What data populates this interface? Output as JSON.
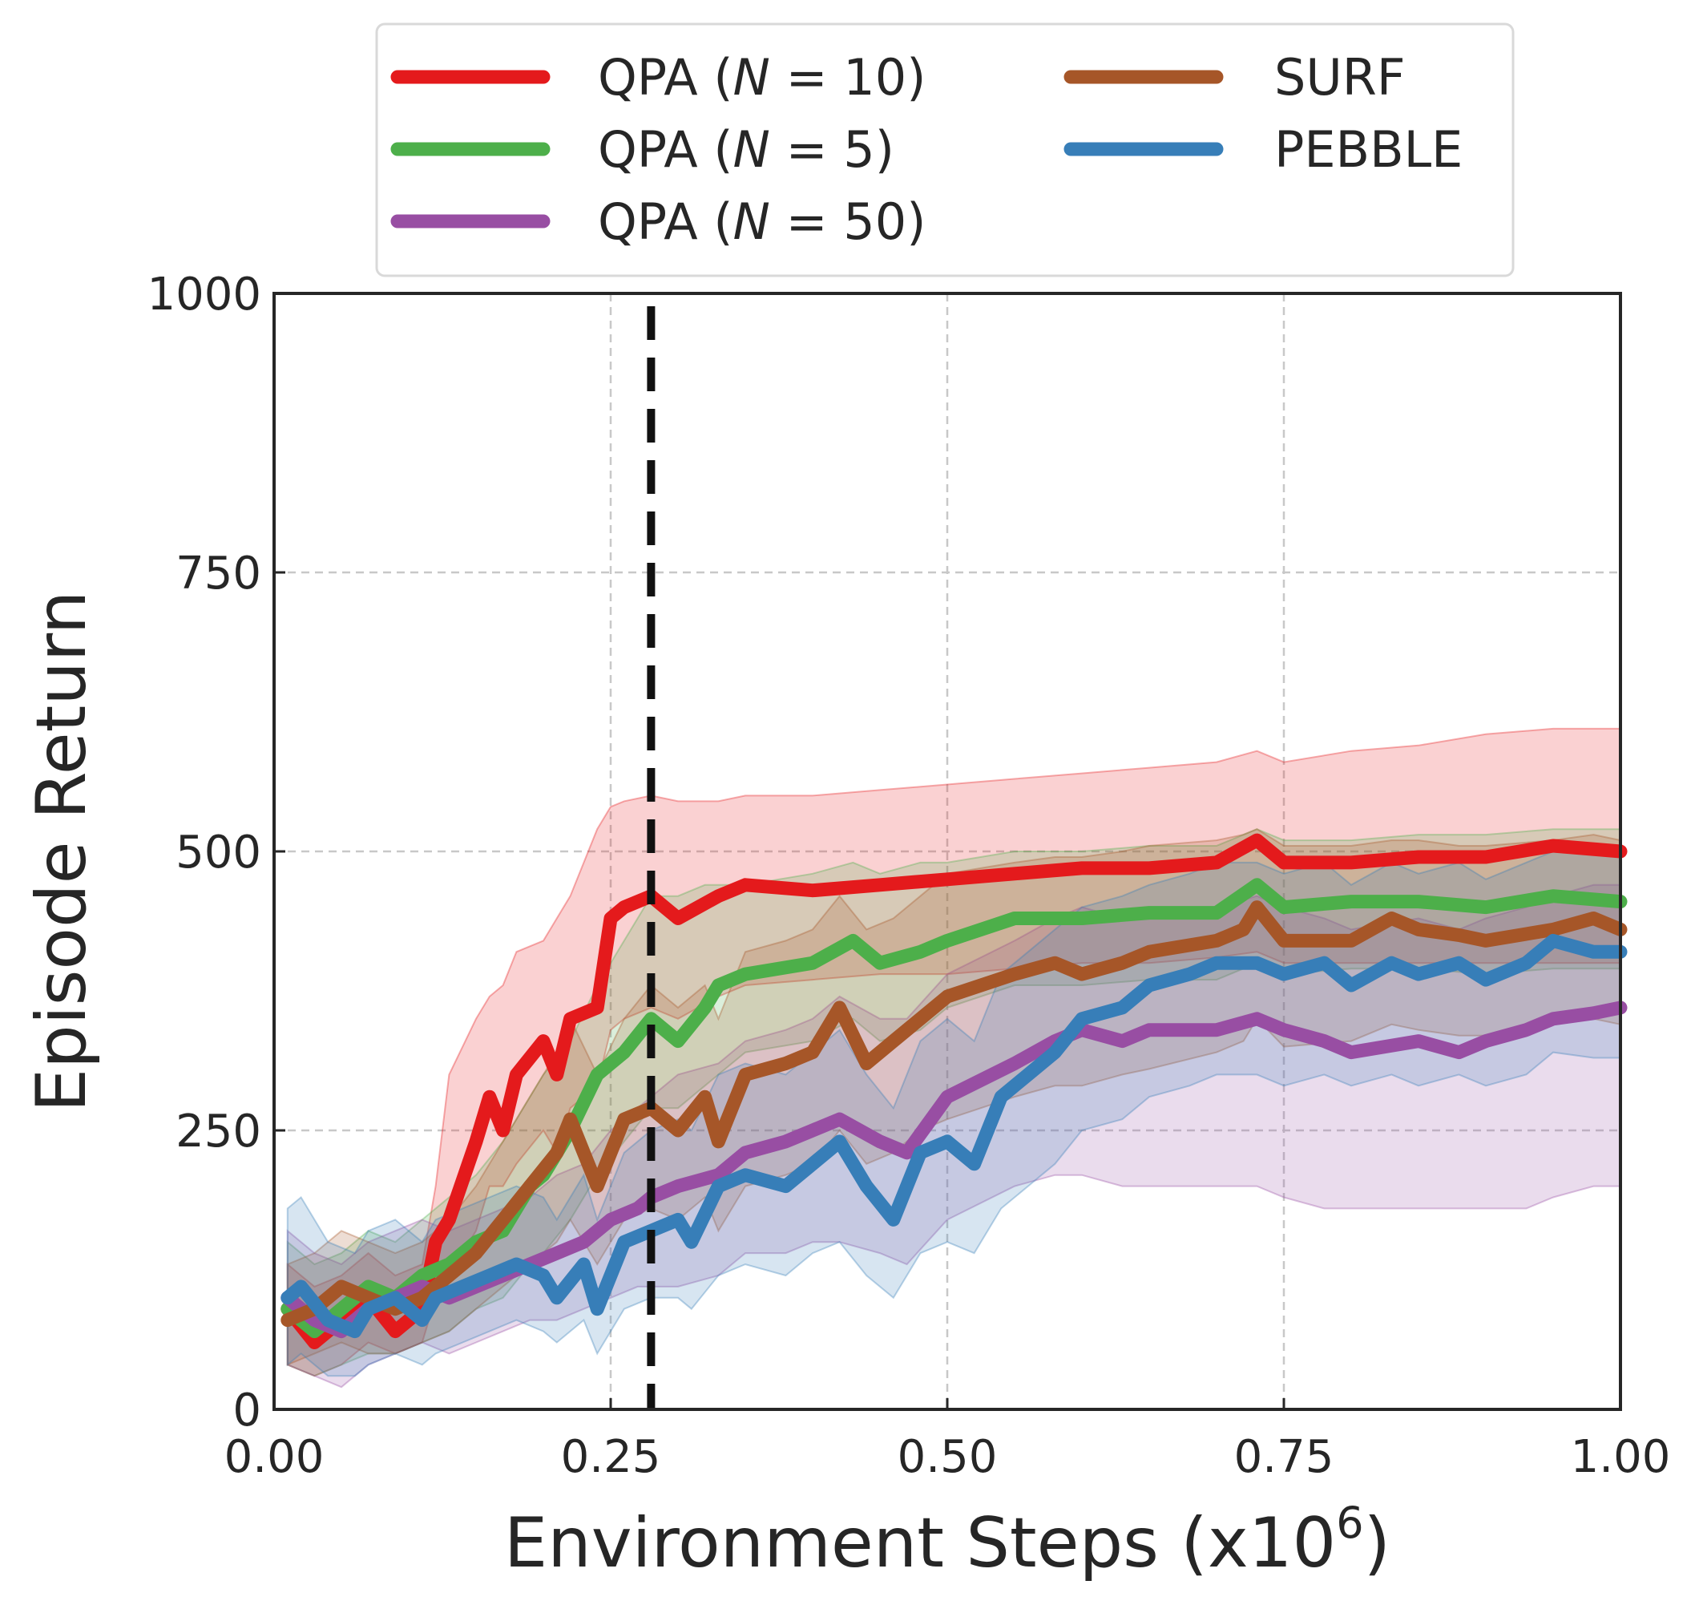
{
  "chart_data": {
    "type": "line",
    "title": "",
    "xlabel": "Environment Steps (x10",
    "xlabel_sup": "6",
    "xlabel_close": ")",
    "ylabel": "Episode Return",
    "xlim": [
      0,
      1
    ],
    "ylim": [
      0,
      1000
    ],
    "xticks": [
      "0.00",
      "0.25",
      "0.50",
      "0.75",
      "1.00"
    ],
    "yticks": [
      "0",
      "250",
      "500",
      "750",
      "1000"
    ],
    "xtick_values": [
      0,
      0.25,
      0.5,
      0.75,
      1.0
    ],
    "ytick_values": [
      0,
      250,
      500,
      750,
      1000
    ],
    "grid": true,
    "legend_position": "top-center",
    "vline": {
      "x": 0.28,
      "style": "dashed",
      "color": "#111111"
    },
    "series": [
      {
        "name": "QPA (N = 10)",
        "label_prefix": "QPA (",
        "label_var": "N",
        "label_suffix": " = 10)",
        "color": "#e41a1c",
        "x": [
          0.01,
          0.03,
          0.05,
          0.07,
          0.09,
          0.11,
          0.12,
          0.13,
          0.15,
          0.16,
          0.17,
          0.18,
          0.2,
          0.21,
          0.22,
          0.24,
          0.25,
          0.26,
          0.28,
          0.3,
          0.33,
          0.35,
          0.4,
          0.45,
          0.5,
          0.55,
          0.6,
          0.65,
          0.7,
          0.73,
          0.75,
          0.8,
          0.85,
          0.9,
          0.95,
          1.0
        ],
        "y": [
          90,
          60,
          80,
          100,
          70,
          90,
          150,
          170,
          240,
          280,
          250,
          300,
          330,
          300,
          350,
          360,
          440,
          450,
          460,
          440,
          460,
          470,
          465,
          470,
          475,
          480,
          485,
          485,
          490,
          510,
          490,
          490,
          495,
          495,
          505,
          500
        ],
        "upper": [
          130,
          110,
          120,
          140,
          120,
          130,
          200,
          300,
          350,
          370,
          380,
          410,
          420,
          440,
          460,
          520,
          540,
          545,
          550,
          545,
          545,
          550,
          550,
          555,
          560,
          565,
          570,
          575,
          580,
          590,
          580,
          590,
          595,
          605,
          610,
          610
        ],
        "lower": [
          40,
          30,
          40,
          60,
          50,
          60,
          100,
          120,
          160,
          200,
          200,
          220,
          250,
          230,
          270,
          290,
          340,
          350,
          360,
          350,
          370,
          380,
          385,
          390,
          390,
          395,
          400,
          400,
          405,
          410,
          400,
          400,
          400,
          400,
          400,
          400
        ]
      },
      {
        "name": "QPA (N = 5)",
        "label_prefix": "QPA (",
        "label_var": "N",
        "label_suffix": " = 5)",
        "color": "#4daf4a",
        "x": [
          0.01,
          0.03,
          0.05,
          0.07,
          0.09,
          0.11,
          0.13,
          0.15,
          0.17,
          0.19,
          0.2,
          0.22,
          0.24,
          0.26,
          0.28,
          0.3,
          0.32,
          0.33,
          0.35,
          0.4,
          0.43,
          0.45,
          0.48,
          0.5,
          0.55,
          0.6,
          0.65,
          0.7,
          0.73,
          0.75,
          0.8,
          0.85,
          0.9,
          0.95,
          1.0
        ],
        "y": [
          90,
          70,
          90,
          110,
          100,
          120,
          130,
          150,
          160,
          200,
          210,
          250,
          300,
          320,
          350,
          330,
          360,
          380,
          390,
          400,
          420,
          400,
          410,
          420,
          440,
          440,
          445,
          445,
          470,
          450,
          455,
          455,
          450,
          460,
          455
        ],
        "upper": [
          150,
          130,
          140,
          160,
          150,
          170,
          190,
          210,
          240,
          280,
          300,
          330,
          380,
          420,
          460,
          460,
          470,
          470,
          470,
          480,
          490,
          480,
          490,
          490,
          500,
          500,
          505,
          505,
          520,
          510,
          510,
          515,
          515,
          520,
          520
        ],
        "lower": [
          40,
          30,
          40,
          50,
          50,
          60,
          70,
          90,
          100,
          130,
          140,
          170,
          210,
          240,
          270,
          270,
          290,
          300,
          320,
          330,
          350,
          330,
          340,
          360,
          380,
          380,
          385,
          385,
          400,
          390,
          395,
          395,
          390,
          395,
          395
        ]
      },
      {
        "name": "QPA (N = 50)",
        "label_prefix": "QPA (",
        "label_var": "N",
        "label_suffix": " = 50)",
        "color": "#984ea3",
        "x": [
          0.01,
          0.03,
          0.05,
          0.07,
          0.09,
          0.11,
          0.13,
          0.15,
          0.17,
          0.19,
          0.21,
          0.23,
          0.25,
          0.27,
          0.28,
          0.3,
          0.33,
          0.35,
          0.38,
          0.4,
          0.42,
          0.45,
          0.47,
          0.5,
          0.55,
          0.58,
          0.6,
          0.63,
          0.65,
          0.7,
          0.73,
          0.75,
          0.78,
          0.8,
          0.85,
          0.88,
          0.9,
          0.93,
          0.95,
          0.98,
          1.0
        ],
        "y": [
          100,
          80,
          70,
          90,
          100,
          110,
          100,
          110,
          120,
          130,
          140,
          150,
          170,
          180,
          190,
          200,
          210,
          230,
          240,
          250,
          260,
          240,
          230,
          280,
          310,
          330,
          340,
          330,
          340,
          340,
          350,
          340,
          330,
          320,
          330,
          320,
          330,
          340,
          350,
          355,
          360
        ],
        "upper": [
          160,
          140,
          130,
          150,
          160,
          170,
          160,
          170,
          180,
          190,
          210,
          220,
          250,
          270,
          280,
          300,
          310,
          330,
          340,
          350,
          370,
          350,
          350,
          390,
          420,
          440,
          450,
          440,
          450,
          450,
          460,
          450,
          440,
          430,
          440,
          430,
          440,
          450,
          460,
          470,
          470
        ],
        "lower": [
          40,
          30,
          20,
          40,
          50,
          60,
          50,
          60,
          70,
          80,
          80,
          90,
          100,
          110,
          110,
          110,
          120,
          140,
          140,
          150,
          150,
          140,
          130,
          170,
          200,
          210,
          210,
          200,
          200,
          200,
          200,
          190,
          180,
          180,
          180,
          180,
          180,
          180,
          190,
          200,
          200
        ]
      },
      {
        "name": "SURF",
        "label_prefix": "SURF",
        "label_var": "",
        "label_suffix": "",
        "color": "#a65628",
        "x": [
          0.01,
          0.03,
          0.05,
          0.07,
          0.09,
          0.11,
          0.13,
          0.15,
          0.17,
          0.19,
          0.21,
          0.22,
          0.24,
          0.26,
          0.28,
          0.3,
          0.32,
          0.33,
          0.35,
          0.38,
          0.4,
          0.42,
          0.44,
          0.46,
          0.48,
          0.5,
          0.55,
          0.58,
          0.6,
          0.63,
          0.65,
          0.7,
          0.72,
          0.73,
          0.75,
          0.8,
          0.83,
          0.85,
          0.88,
          0.9,
          0.95,
          0.98,
          1.0
        ],
        "y": [
          80,
          90,
          110,
          100,
          90,
          100,
          120,
          140,
          170,
          200,
          230,
          260,
          200,
          260,
          270,
          250,
          280,
          240,
          300,
          310,
          320,
          360,
          310,
          330,
          350,
          370,
          390,
          400,
          390,
          400,
          410,
          420,
          430,
          450,
          420,
          420,
          440,
          430,
          425,
          420,
          430,
          440,
          430
        ],
        "upper": [
          130,
          140,
          160,
          150,
          140,
          150,
          170,
          200,
          240,
          280,
          320,
          350,
          300,
          350,
          380,
          360,
          380,
          350,
          410,
          420,
          430,
          460,
          430,
          440,
          460,
          480,
          490,
          495,
          495,
          500,
          505,
          510,
          515,
          520,
          505,
          505,
          510,
          510,
          505,
          505,
          510,
          515,
          510
        ],
        "lower": [
          40,
          50,
          60,
          50,
          50,
          60,
          70,
          90,
          110,
          130,
          150,
          170,
          130,
          170,
          180,
          170,
          190,
          160,
          200,
          210,
          220,
          250,
          220,
          230,
          250,
          260,
          280,
          290,
          290,
          300,
          305,
          320,
          330,
          350,
          325,
          330,
          345,
          340,
          335,
          335,
          345,
          350,
          345
        ]
      },
      {
        "name": "PEBBLE",
        "label_prefix": "PEBBLE",
        "label_var": "",
        "label_suffix": "",
        "color": "#377eb8",
        "x": [
          0.01,
          0.02,
          0.04,
          0.06,
          0.07,
          0.09,
          0.11,
          0.12,
          0.14,
          0.16,
          0.18,
          0.2,
          0.21,
          0.23,
          0.24,
          0.26,
          0.28,
          0.3,
          0.31,
          0.33,
          0.35,
          0.38,
          0.4,
          0.42,
          0.44,
          0.46,
          0.48,
          0.5,
          0.52,
          0.54,
          0.56,
          0.58,
          0.6,
          0.63,
          0.65,
          0.68,
          0.7,
          0.73,
          0.75,
          0.78,
          0.8,
          0.83,
          0.85,
          0.88,
          0.9,
          0.93,
          0.95,
          0.98,
          1.0
        ],
        "y": [
          100,
          110,
          80,
          70,
          90,
          100,
          80,
          100,
          110,
          120,
          130,
          120,
          100,
          130,
          90,
          150,
          160,
          170,
          150,
          200,
          210,
          200,
          220,
          240,
          200,
          170,
          230,
          240,
          220,
          280,
          300,
          320,
          350,
          360,
          380,
          390,
          400,
          400,
          390,
          400,
          380,
          400,
          390,
          400,
          385,
          400,
          420,
          410,
          410
        ],
        "upper": [
          180,
          190,
          150,
          140,
          160,
          170,
          150,
          170,
          180,
          190,
          200,
          190,
          170,
          210,
          170,
          230,
          250,
          260,
          250,
          300,
          310,
          300,
          320,
          340,
          300,
          270,
          330,
          350,
          330,
          390,
          410,
          430,
          450,
          460,
          470,
          480,
          490,
          490,
          480,
          490,
          470,
          490,
          480,
          490,
          475,
          490,
          500,
          500,
          500
        ],
        "lower": [
          40,
          50,
          30,
          30,
          40,
          50,
          40,
          50,
          60,
          70,
          80,
          70,
          60,
          80,
          50,
          90,
          100,
          100,
          90,
          120,
          130,
          120,
          140,
          150,
          120,
          100,
          140,
          150,
          140,
          180,
          200,
          220,
          250,
          260,
          280,
          290,
          300,
          300,
          290,
          300,
          290,
          300,
          290,
          300,
          290,
          300,
          320,
          315,
          315
        ]
      }
    ]
  }
}
